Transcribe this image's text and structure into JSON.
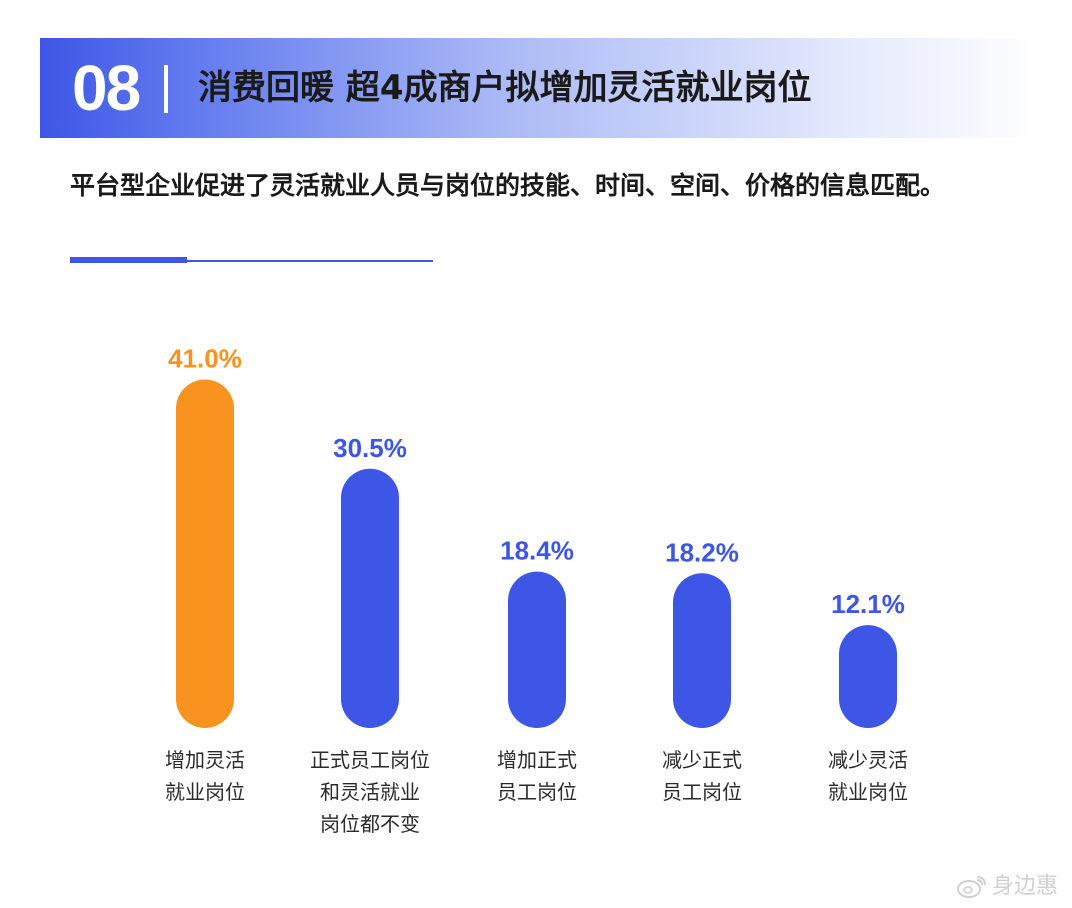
{
  "header": {
    "number": "08",
    "title": "消费回暖 超4成商户拟增加灵活就业岗位"
  },
  "subtitle": "平台型企业促进了灵活就业人员与岗位的技能、时间、空间、价格的信息匹配。",
  "watermark": "身边惠",
  "colors": {
    "header_blue": "#3d56e6",
    "bar_blue": "#3d56e6",
    "bar_orange": "#f7931e"
  },
  "chart_data": {
    "type": "bar",
    "categories": [
      "增加灵活就业岗位",
      "正式员工岗位和灵活就业岗位都不变",
      "增加正式员工岗位",
      "减少正式员工岗位",
      "减少灵活就业岗位"
    ],
    "category_lines": [
      [
        "增加灵活",
        "就业岗位"
      ],
      [
        "正式员工岗位",
        "和灵活就业",
        "岗位都不变"
      ],
      [
        "增加正式",
        "员工岗位"
      ],
      [
        "减少正式",
        "员工岗位"
      ],
      [
        "减少灵活",
        "就业岗位"
      ]
    ],
    "values": [
      41.0,
      30.5,
      18.4,
      18.2,
      12.1
    ],
    "value_labels": [
      "41.0%",
      "30.5%",
      "18.4%",
      "18.2%",
      "12.1%"
    ],
    "highlight_index": 0,
    "grid": false
  }
}
